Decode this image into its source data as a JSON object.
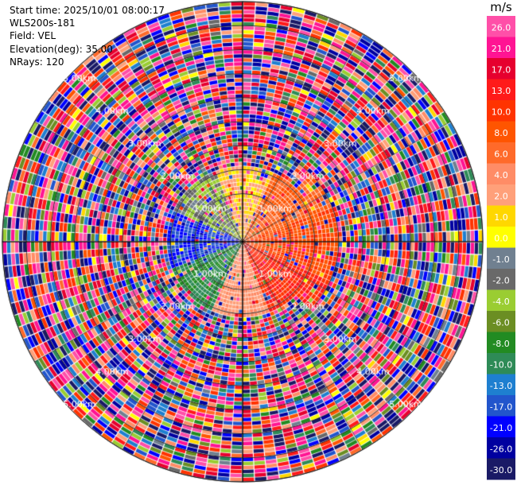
{
  "header": {
    "start_time": "Start time: 2025/10/01 08:00:17",
    "station": "WLS200s-181",
    "field": "Field: VEL",
    "elevation": "Elevation(deg): 35.00",
    "nrays": "NRays: 120"
  },
  "colorbar": {
    "unit": "m/s",
    "ticks": [
      "26.0",
      "21.0",
      "17.0",
      "13.0",
      "10.0",
      "8.0",
      "6.0",
      "4.0",
      "2.0",
      "1.0",
      "0.0",
      "-1.0",
      "-2.0",
      "-4.0",
      "-6.0",
      "-8.0",
      "-10.0",
      "-13.0",
      "-17.0",
      "-21.0",
      "-26.0",
      "-30.0"
    ],
    "colors": [
      "#ff4fa8",
      "#ff1493",
      "#e6002e",
      "#ff1a1a",
      "#ff3300",
      "#ff5500",
      "#ff6a2a",
      "#ff8c66",
      "#ffa07a",
      "#ffd700",
      "#ffff00",
      "#708090",
      "#696969",
      "#9acd32",
      "#6b8e23",
      "#228b22",
      "#2e8b57",
      "#1e7fd0",
      "#2255cc",
      "#0000ff",
      "#0000a0",
      "#1a1a66"
    ]
  },
  "chart_data": {
    "type": "polar",
    "field": "VEL",
    "unit": "m/s",
    "nrays": 120,
    "ring_labels": [
      "1.00km",
      "2.00km",
      "3.00km",
      "4.00km",
      "5.00km"
    ],
    "ring_ranges_km": [
      1,
      2,
      3,
      4,
      5
    ],
    "max_range_km": 5.0,
    "velocity_bounds": [
      -30,
      -26,
      -21,
      -17,
      -13,
      -10,
      -8,
      -6,
      -4,
      -2,
      -1,
      0,
      1,
      2,
      4,
      6,
      8,
      10,
      13,
      17,
      21,
      26,
      30
    ],
    "near_field_pattern": [
      {
        "sector": "west",
        "range_km": [
          0,
          1.6
        ],
        "velocity": -17.0
      },
      {
        "sector": "southwest",
        "range_km": [
          0,
          1.6
        ],
        "velocity": -8.0
      },
      {
        "sector": "northwest",
        "range_km": [
          0,
          1.6
        ],
        "velocity": -2.0
      },
      {
        "sector": "north",
        "range_km": [
          0,
          1.6
        ],
        "velocity": 2.0
      },
      {
        "sector": "east",
        "range_km": [
          0,
          2.0
        ],
        "velocity": 10.0
      },
      {
        "sector": "northeast",
        "range_km": [
          0,
          2.0
        ],
        "velocity": 8.0
      },
      {
        "sector": "southeast",
        "range_km": [
          0,
          2.0
        ],
        "velocity": 13.0
      },
      {
        "sector": "south",
        "range_km": [
          0,
          1.6
        ],
        "velocity": 4.0
      }
    ],
    "outer_field": "noise (random velocities across full scale)"
  }
}
